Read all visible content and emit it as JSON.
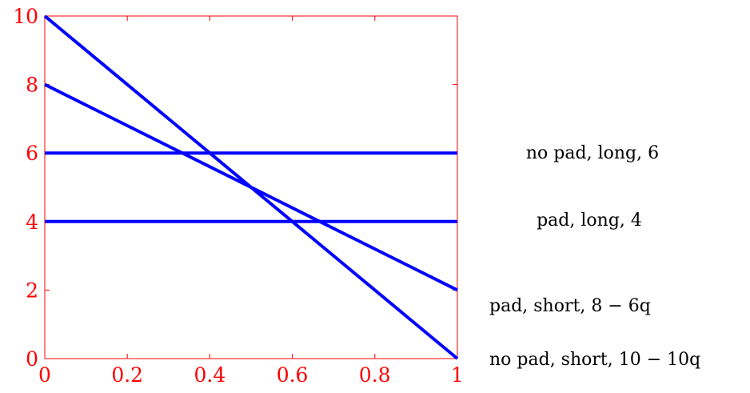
{
  "chart_data": {
    "type": "line",
    "title": "",
    "xlabel": "",
    "ylabel": "",
    "xlim": [
      0,
      1
    ],
    "ylim": [
      0,
      10
    ],
    "x_ticks": [
      0,
      0.2,
      0.4,
      0.6,
      0.8,
      1
    ],
    "x_tick_labels": [
      "0",
      "0.2",
      "0.4",
      "0.6",
      "0.8",
      "1"
    ],
    "y_ticks": [
      0,
      2,
      4,
      6,
      8,
      10
    ],
    "y_tick_labels": [
      "0",
      "2",
      "4",
      "6",
      "8",
      "10"
    ],
    "grid": false,
    "legend": "none",
    "colors": {
      "axis": "#ff0000",
      "series": "#0000ff"
    },
    "series": [
      {
        "label": "no pad, long, 6",
        "x": [
          0,
          1
        ],
        "y": [
          6,
          6
        ]
      },
      {
        "label": "pad, long, 4",
        "x": [
          0,
          1
        ],
        "y": [
          4,
          4
        ]
      },
      {
        "label": "pad, short, 8 − 6q",
        "x": [
          0,
          1
        ],
        "y": [
          8,
          2
        ]
      },
      {
        "label": "no pad, short, 10 − 10q",
        "x": [
          0,
          1
        ],
        "y": [
          10,
          0
        ]
      }
    ]
  }
}
